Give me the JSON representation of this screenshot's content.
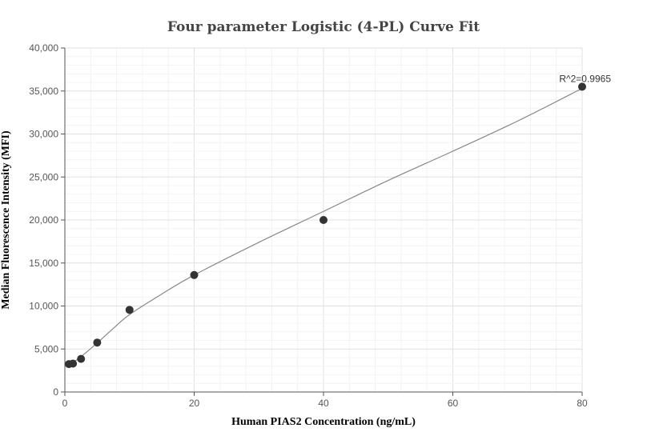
{
  "chart_data": {
    "type": "scatter",
    "title": "Four parameter Logistic (4-PL) Curve Fit",
    "xlabel": "Human PIAS2 Concentration (ng/mL)",
    "ylabel": "Median Fluorescence Intensity (MFI)",
    "xlim": [
      0,
      80
    ],
    "ylim": [
      0,
      40000
    ],
    "x_ticks": [
      0,
      20,
      40,
      60,
      80
    ],
    "x_tick_labels": [
      "0",
      "20",
      "40",
      "60",
      "80"
    ],
    "y_ticks": [
      0,
      5000,
      10000,
      15000,
      20000,
      25000,
      30000,
      35000,
      40000
    ],
    "y_tick_labels": [
      "0",
      "5,000",
      "10,000",
      "15,000",
      "20,000",
      "25,000",
      "30,000",
      "35,000",
      "40,000"
    ],
    "grid": true,
    "points": {
      "x": [
        0.625,
        1.25,
        2.5,
        5,
        10,
        20,
        40,
        80
      ],
      "y": [
        3250,
        3300,
        3850,
        5750,
        9550,
        13600,
        20000,
        35500
      ]
    },
    "fit_curve": {
      "x": [
        0.625,
        1.25,
        2.5,
        5,
        7.5,
        10,
        15,
        20,
        30,
        40,
        50,
        60,
        70,
        80
      ],
      "y": [
        3200,
        3450,
        4100,
        5700,
        7400,
        9000,
        11400,
        13600,
        17400,
        21000,
        24600,
        28000,
        31500,
        35300
      ]
    },
    "annotation": {
      "text": "R^2=0.9965",
      "x": 80,
      "y": 35500
    },
    "colors": {
      "points": "#333333",
      "curve": "#888888",
      "grid": "#e6e6e6"
    }
  }
}
